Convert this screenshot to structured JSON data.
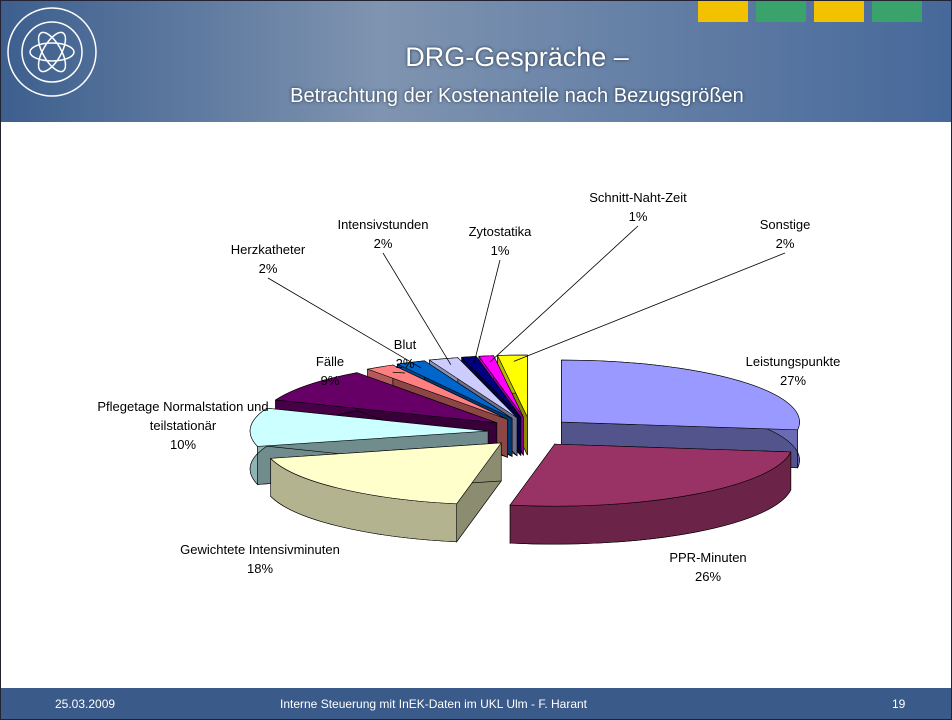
{
  "header": {
    "title": "DRG-Gespräche –",
    "subtitle": "Betrachtung der Kostenanteile nach Bezugsgrößen"
  },
  "footer": {
    "date": "25.03.2009",
    "text": "Interne Steuerung mit InEK-Daten im UKL Ulm - F. Harant",
    "page": "19"
  },
  "chart_data": {
    "type": "pie",
    "categories": [
      "Leistungspunkte",
      "PPR-Minuten",
      "Gewichtete Intensivminuten",
      "Pflegetage Normalstation und teilstationär",
      "Fälle",
      "Blut",
      "Herzkatheter",
      "Intensivstunden",
      "Zytostatika",
      "Schnitt-Naht-Zeit",
      "Sonstige"
    ],
    "values": [
      27,
      26,
      18,
      10,
      9,
      2,
      2,
      2,
      1,
      1,
      2
    ],
    "value_labels": [
      "27%",
      "26%",
      "18%",
      "10%",
      "9%",
      "2%",
      "2%",
      "2%",
      "1%",
      "1%",
      "2%"
    ],
    "colors": [
      "#9999ff",
      "#993366",
      "#ffffcc",
      "#ccffff",
      "#660066",
      "#ff8080",
      "#0066cc",
      "#ccccff",
      "#000080",
      "#ff00ff",
      "#ffff00"
    ]
  }
}
